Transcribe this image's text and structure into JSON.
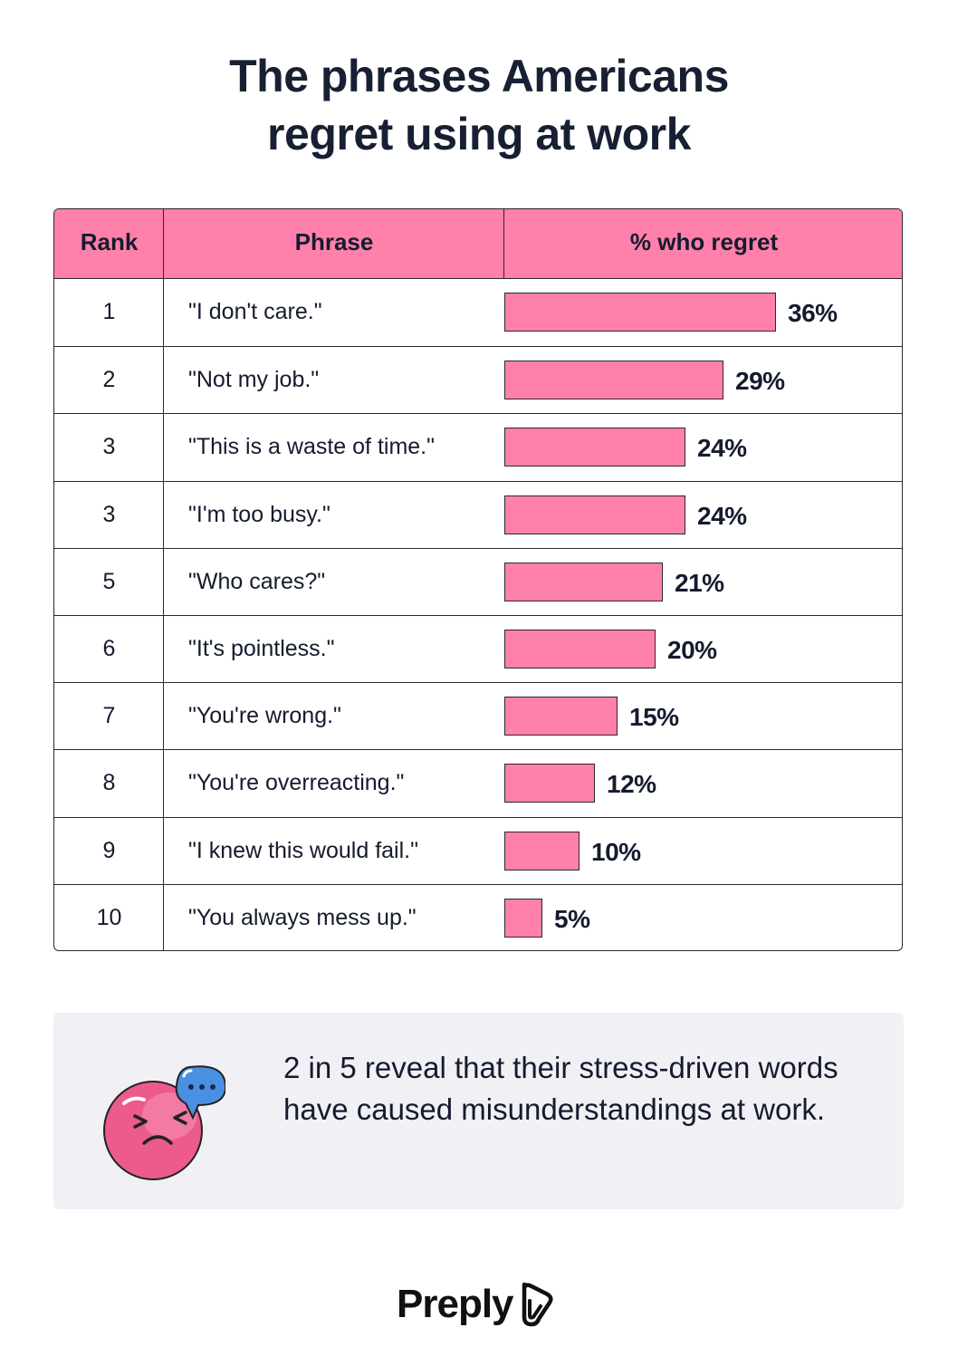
{
  "title": {
    "line1": "The phrases Americans",
    "line2": "regret using at work"
  },
  "table": {
    "headers": {
      "rank": "Rank",
      "phrase": "Phrase",
      "regret": "% who regret"
    }
  },
  "chart_data": {
    "type": "bar",
    "orientation": "horizontal",
    "title": "The phrases Americans regret using at work",
    "columns": [
      "Rank",
      "Phrase",
      "% who regret"
    ],
    "ranks": [
      "1",
      "2",
      "3",
      "3",
      "5",
      "6",
      "7",
      "8",
      "9",
      "10"
    ],
    "categories": [
      "\"I don't care.\"",
      "\"Not my job.\"",
      "\"This is a waste of time.\"",
      "\"I'm too busy.\"",
      "\"Who cares?\"",
      "\"It's pointless.\"",
      "\"You're wrong.\"",
      "\"You're overreacting.\"",
      "\"I knew this would fail.\"",
      "\"You always mess up.\""
    ],
    "values": [
      36,
      29,
      24,
      24,
      21,
      20,
      15,
      12,
      10,
      5
    ],
    "value_labels": [
      "36%",
      "29%",
      "24%",
      "24%",
      "21%",
      "20%",
      "15%",
      "12%",
      "10%",
      "5%"
    ],
    "unit": "%",
    "grid": false,
    "legend": "none"
  },
  "callout": {
    "text": "2 in 5 reveal that their stress-driven words have caused misunderstandings at work.",
    "icon": "sad-face-with-speech-bubble-icon"
  },
  "brand": {
    "name": "Preply",
    "icon": "preply-logo-icon"
  },
  "colors": {
    "accent": "#ff80ab",
    "callout_bg": "#f1f1f5",
    "speech_bubble": "#4a90e2",
    "text": "#151b2e"
  }
}
